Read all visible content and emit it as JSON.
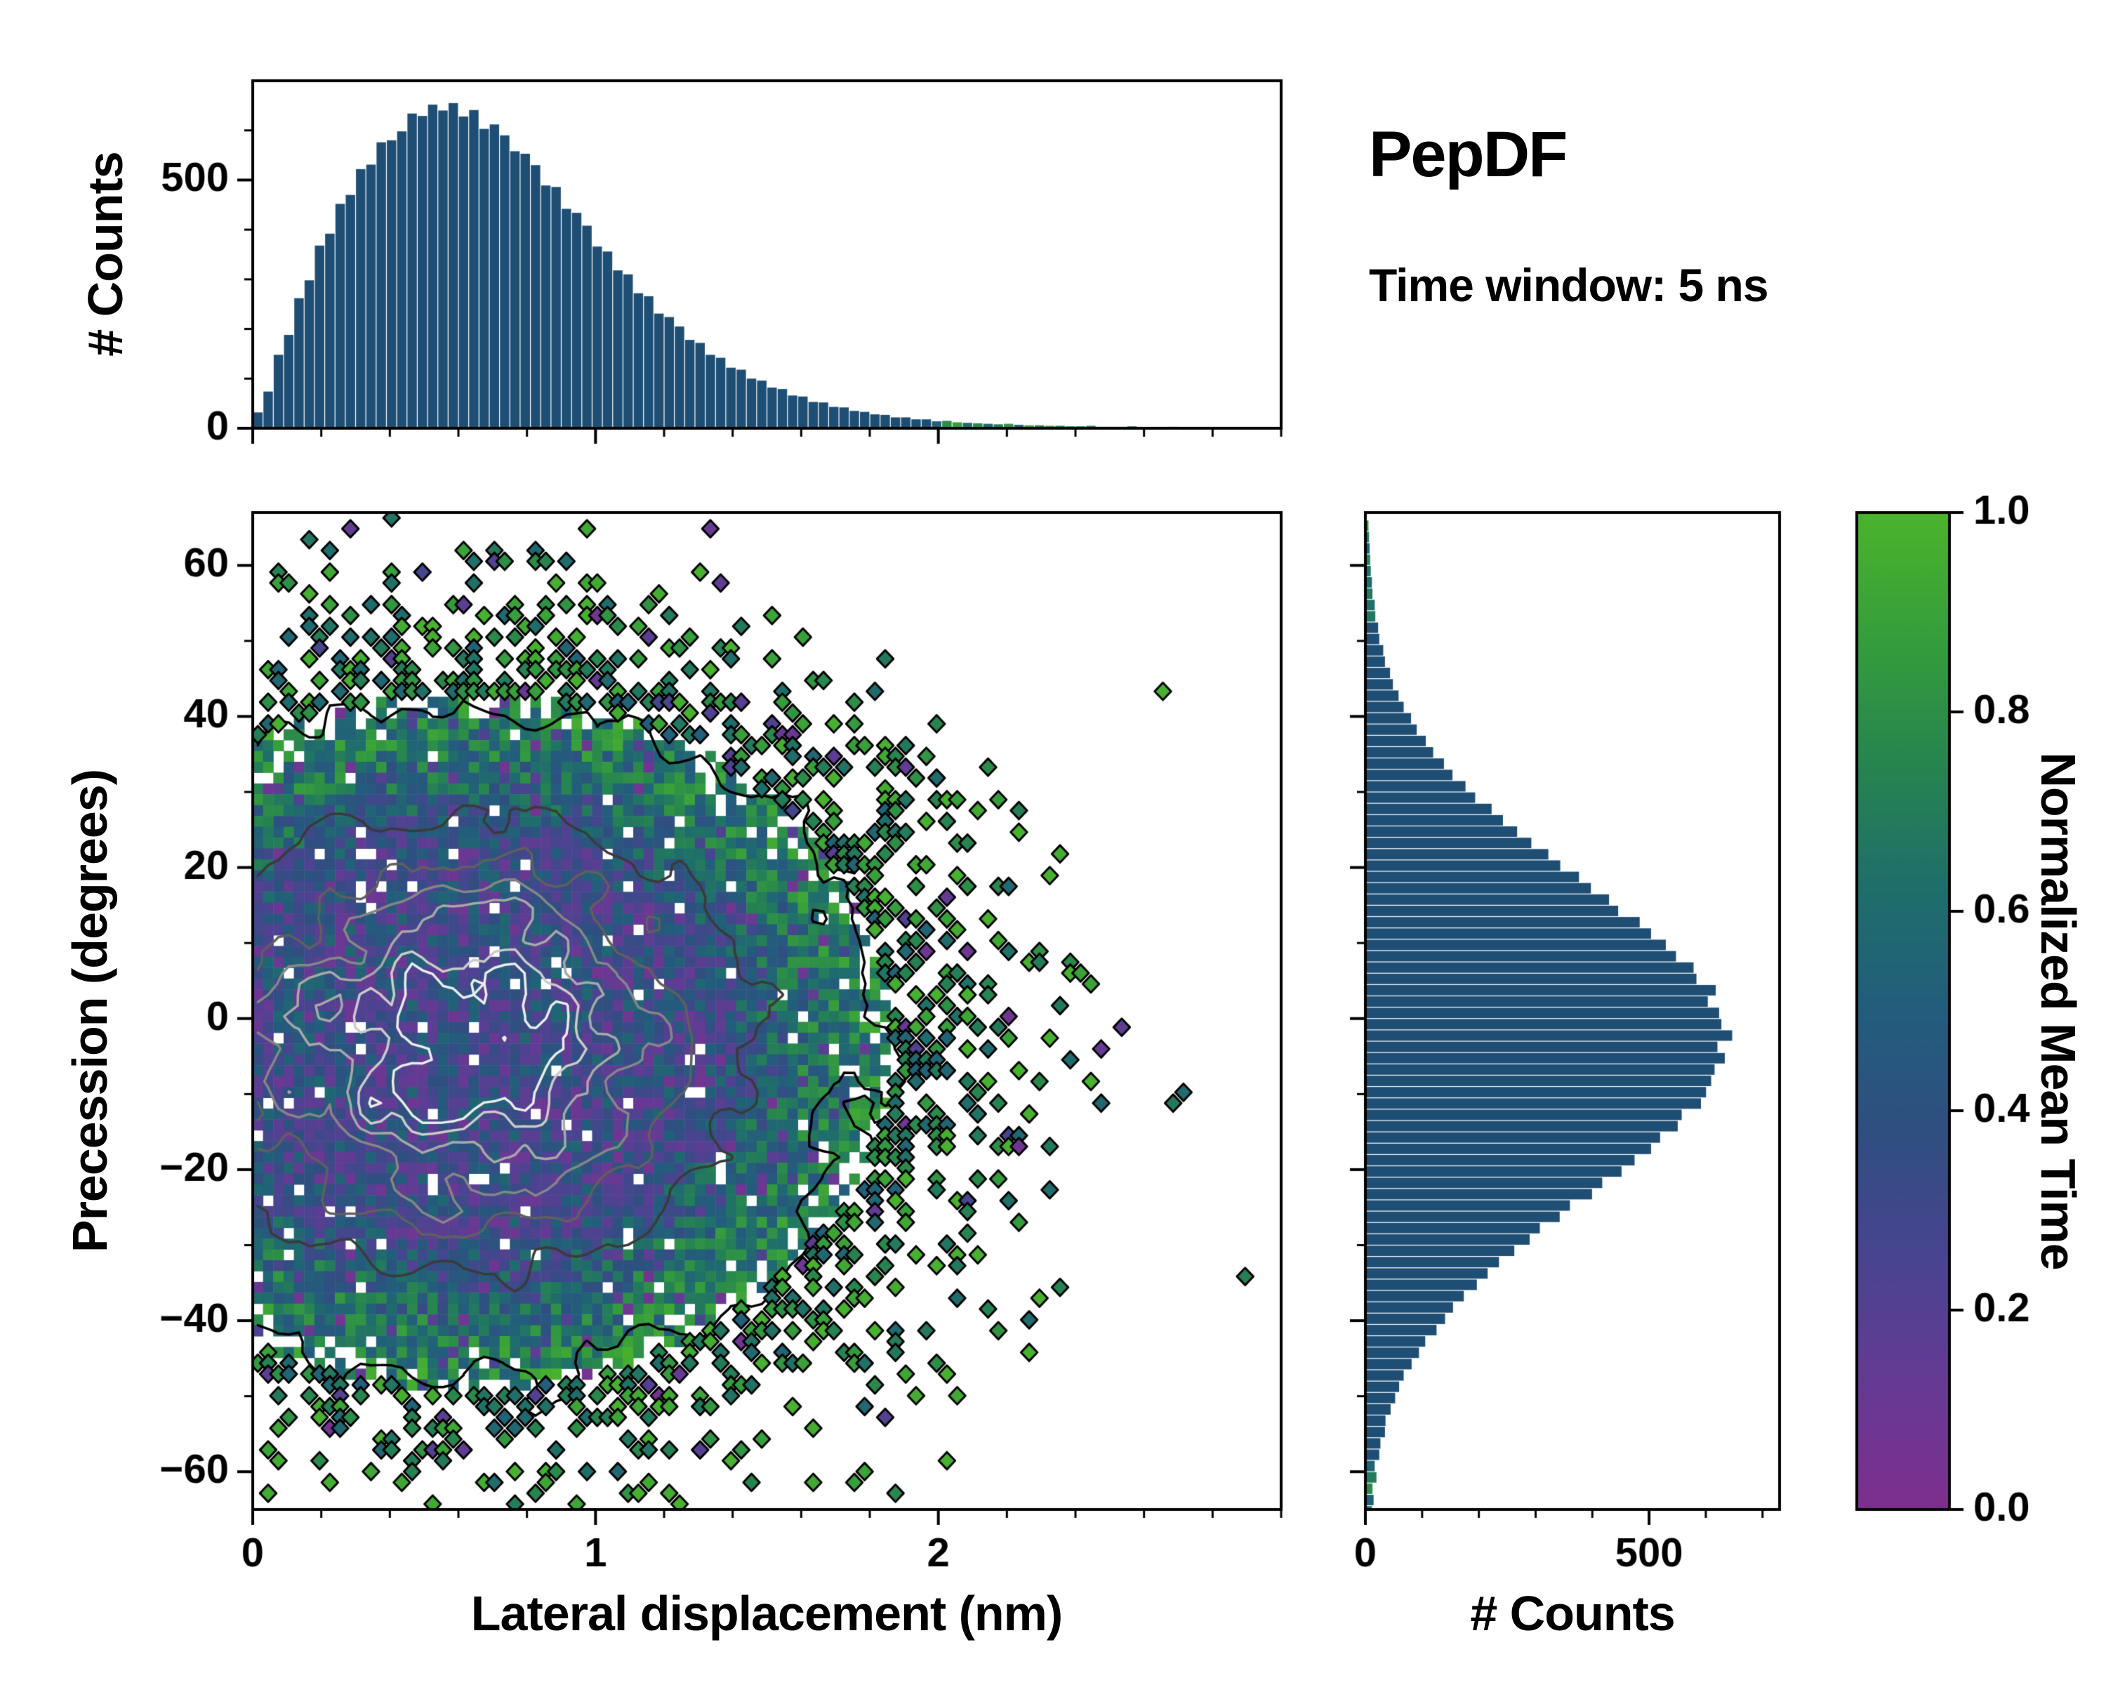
{
  "title": {
    "heading": "PepDF",
    "subtitle": "Time window: 5 ns"
  },
  "labels": {
    "top_ylabel": "# Counts",
    "main_xlabel": "Lateral displacement (nm)",
    "main_ylabel": "Precession (degrees)",
    "right_xlabel": "# Counts",
    "colorbar_label": "Normalized Mean Time"
  },
  "colors": {
    "background": "#ffffff",
    "spine": "#000000",
    "histogram_bar": "#1f4e74",
    "colormap_stops": [
      [
        0.0,
        "#7e2f8e"
      ],
      [
        0.12,
        "#663a94"
      ],
      [
        0.25,
        "#4a4490"
      ],
      [
        0.38,
        "#2f4f80"
      ],
      [
        0.5,
        "#235d7c"
      ],
      [
        0.62,
        "#1f6e6b"
      ],
      [
        0.75,
        "#27854f"
      ],
      [
        0.88,
        "#379f3b"
      ],
      [
        1.0,
        "#4bb42c"
      ]
    ],
    "contour_levels": [
      [
        0.085,
        "#000000"
      ],
      [
        0.3,
        "#3a3a3a"
      ],
      [
        0.48,
        "#5f5f5f"
      ],
      [
        0.62,
        "#868686"
      ],
      [
        0.74,
        "#a8a8a8"
      ],
      [
        0.84,
        "#cbcbcb"
      ],
      [
        0.92,
        "#ececec"
      ]
    ]
  },
  "chart_data": [
    {
      "id": "top_hist",
      "type": "bar",
      "orientation": "vertical",
      "ylabel": "# Counts",
      "xlim": [
        0,
        3
      ],
      "ylim": [
        0,
        700
      ],
      "bin_start": 0,
      "bin_width": 0.03,
      "xticks": [
        0,
        1,
        2
      ],
      "xtick_labels": [
        "0",
        "1",
        "2"
      ],
      "x_minor_step": 0.2,
      "yticks": [
        0,
        500
      ],
      "ytick_labels": [
        "0",
        "500"
      ],
      "y_minor_step": 100,
      "values": [
        32,
        74,
        148,
        188,
        262,
        298,
        368,
        392,
        452,
        470,
        522,
        531,
        576,
        580,
        598,
        634,
        629,
        652,
        640,
        655,
        628,
        641,
        603,
        612,
        590,
        558,
        553,
        530,
        489,
        486,
        442,
        434,
        408,
        366,
        356,
        318,
        310,
        272,
        266,
        231,
        224,
        205,
        178,
        172,
        148,
        142,
        122,
        118,
        100,
        96,
        82,
        79,
        66,
        64,
        53,
        52,
        43,
        42,
        35,
        33,
        28,
        27,
        22,
        22,
        18,
        18,
        14,
        15,
        12,
        11,
        10,
        9,
        8,
        9,
        7,
        6,
        6,
        5,
        5,
        4,
        4,
        5,
        3,
        3,
        3,
        4,
        2,
        2,
        2,
        3,
        2,
        1,
        1,
        2,
        1,
        1,
        1,
        1,
        1,
        0
      ]
    },
    {
      "id": "joint_heatmap",
      "type": "heatmap",
      "xlabel": "Lateral displacement (nm)",
      "ylabel": "Precession (degrees)",
      "color_variable": "Normalized Mean Time",
      "xlim": [
        0,
        3
      ],
      "ylim": [
        -65,
        67
      ],
      "xticks": [
        0,
        1,
        2
      ],
      "xtick_labels": [
        "0",
        "1",
        "2"
      ],
      "x_minor_step": 0.2,
      "yticks": [
        -60,
        -40,
        -20,
        0,
        20,
        40,
        60
      ],
      "ytick_labels": [
        "−60",
        "−40",
        "−20",
        "0",
        "20",
        "40",
        "60"
      ],
      "y_minor_step": 10,
      "grid": [
        100,
        92
      ],
      "density_center": [
        0.62,
        -3
      ],
      "density_sigma": [
        0.54,
        20
      ],
      "fill_gain": 5,
      "fill_exp": 0.8,
      "fill_max": 0.96,
      "noise_scale": 0.45,
      "noise_floor": 0.03,
      "seed": 1337,
      "note": "2D histogram of precession angle vs lateral displacement; bins colored by normalized mean time (purple ~0, blue ~0.45, green ~1); density contours overlaid from white (densest center) through grays to black boundary; isolated outlying bins drawn as black-outlined diamonds"
    },
    {
      "id": "right_hist",
      "type": "bar",
      "orientation": "horizontal",
      "xlabel": "# Counts",
      "xlim": [
        0,
        730
      ],
      "ylim": [
        -65,
        67
      ],
      "bin_start": -66,
      "bin_width": 1.5,
      "xticks": [
        0,
        500
      ],
      "xtick_labels": [
        "0",
        "500"
      ],
      "x_minor_step": 100,
      "values": [
        9,
        12,
        10,
        17,
        14,
        22,
        24,
        32,
        33,
        42,
        50,
        57,
        65,
        79,
        92,
        103,
        123,
        138,
        152,
        171,
        194,
        213,
        233,
        260,
        287,
        305,
        340,
        358,
        397,
        415,
        449,
        472,
        501,
        517,
        548,
        555,
        589,
        598,
        607,
        613,
        631,
        618,
        644,
        625,
        621,
        601,
        615,
        581,
        576,
        545,
        527,
        501,
        481,
        443,
        427,
        395,
        374,
        341,
        320,
        290,
        265,
        240,
        220,
        191,
        174,
        151,
        136,
        117,
        104,
        88,
        78,
        65,
        56,
        46,
        41,
        32,
        29,
        22,
        20,
        15,
        14,
        10,
        9,
        7,
        6,
        5,
        4,
        3
      ]
    },
    {
      "id": "colorbar",
      "type": "colorbar",
      "label": "Normalized Mean Time",
      "range": [
        0,
        1
      ],
      "ticks": [
        0,
        0.2,
        0.4,
        0.6,
        0.8,
        1
      ],
      "tick_labels": [
        "0.0",
        "0.2",
        "0.4",
        "0.6",
        "0.8",
        "1.0"
      ]
    }
  ]
}
